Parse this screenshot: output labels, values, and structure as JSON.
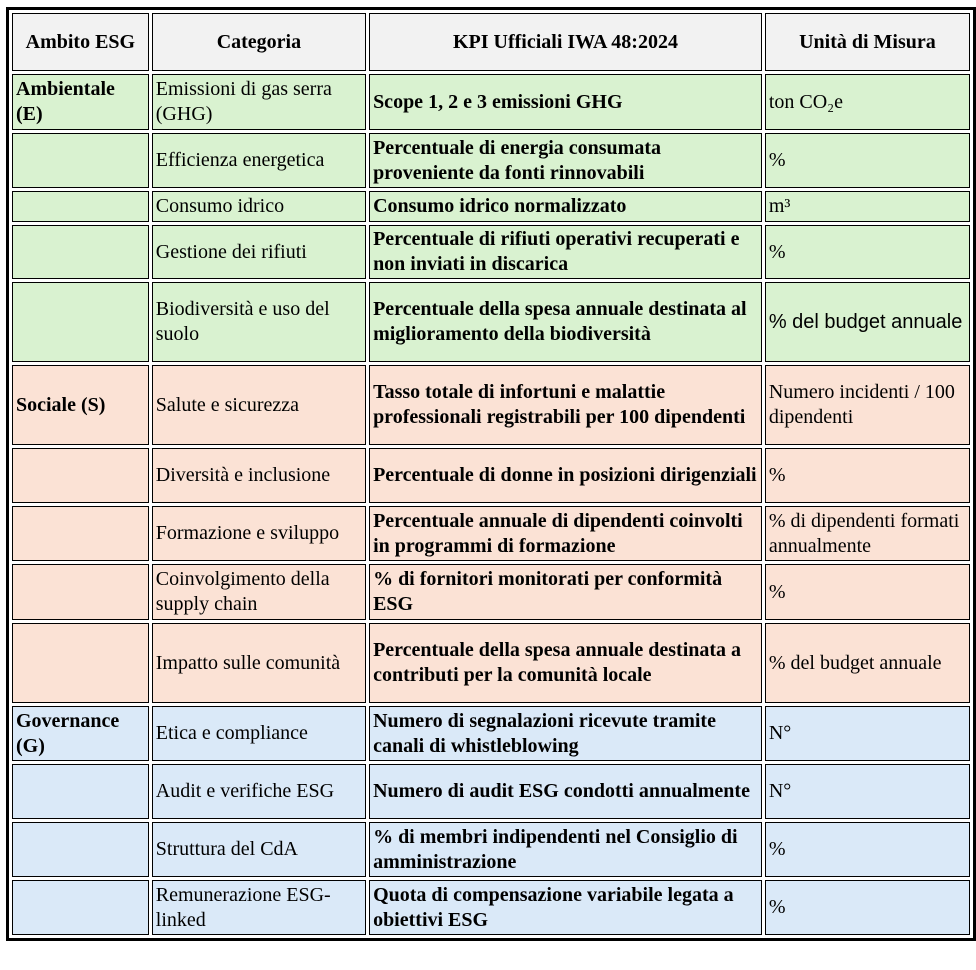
{
  "headers": [
    "Ambito ESG",
    "Categoria",
    "KPI Ufficiali IWA 48:2024",
    "Unità di Misura"
  ],
  "colors": {
    "header": "#f2f2f2",
    "ambientale": "#d9f2d0",
    "sociale": "#fbe2d5",
    "governance": "#dae9f8"
  },
  "rows": [
    {
      "ambito": "Ambientale (E)",
      "categoria": "Emissioni di gas serra (GHG)",
      "kpi": "Scope 1, 2 e 3 emissioni GHG",
      "unita": "ton CO₂e"
    },
    {
      "ambito": "",
      "categoria": "Efficienza energetica",
      "kpi": "Percentuale di energia consumata proveniente da fonti rinnovabili",
      "unita": "%"
    },
    {
      "ambito": "",
      "categoria": "Consumo idrico",
      "kpi": "Consumo idrico normalizzato",
      "unita": "m³"
    },
    {
      "ambito": "",
      "categoria": "Gestione dei rifiuti",
      "kpi": "Percentuale di rifiuti operativi recuperati e non inviati in discarica",
      "unita": "%"
    },
    {
      "ambito": "",
      "categoria": "Biodiversità e uso del suolo",
      "kpi": "Percentuale della spesa annuale destinata al miglioramento della biodiversità",
      "unita": "% del budget annuale"
    },
    {
      "ambito": "Sociale (S)",
      "categoria": "Salute e sicurezza",
      "kpi": "Tasso totale di infortuni e malattie professionali registrabili per 100 dipendenti",
      "unita": "Numero incidenti / 100 dipendenti"
    },
    {
      "ambito": "",
      "categoria": "Diversità e inclusione",
      "kpi": "Percentuale di donne in posizioni dirigenziali",
      "unita": "%"
    },
    {
      "ambito": "",
      "categoria": "Formazione e sviluppo",
      "kpi": "Percentuale annuale di dipendenti coinvolti in programmi di formazione",
      "unita": "% di dipendenti formati annualmente"
    },
    {
      "ambito": "",
      "categoria": "Coinvolgimento della supply chain",
      "kpi": "% di fornitori monitorati per conformità ESG",
      "unita": "%"
    },
    {
      "ambito": "",
      "categoria": "Impatto sulle comunità",
      "kpi": "Percentuale della spesa annuale destinata a contributi per la comunità locale",
      "unita": "% del budget annuale"
    },
    {
      "ambito": "Governance (G)",
      "categoria": "Etica e compliance",
      "kpi": "Numero di segnalazioni ricevute tramite canali di whistleblowing",
      "unita": "N°"
    },
    {
      "ambito": "",
      "categoria": "Audit e verifiche ESG",
      "kpi": "Numero di audit ESG condotti annualmente",
      "unita": "N°"
    },
    {
      "ambito": "",
      "categoria": "Struttura del CdA",
      "kpi": "% di membri indipendenti nel Consiglio di amministrazione",
      "unita": "%"
    },
    {
      "ambito": "",
      "categoria": "Remunerazione ESG-linked",
      "kpi": "Quota di compensazione variabile legata a obiettivi ESG",
      "unita": "%"
    }
  ]
}
